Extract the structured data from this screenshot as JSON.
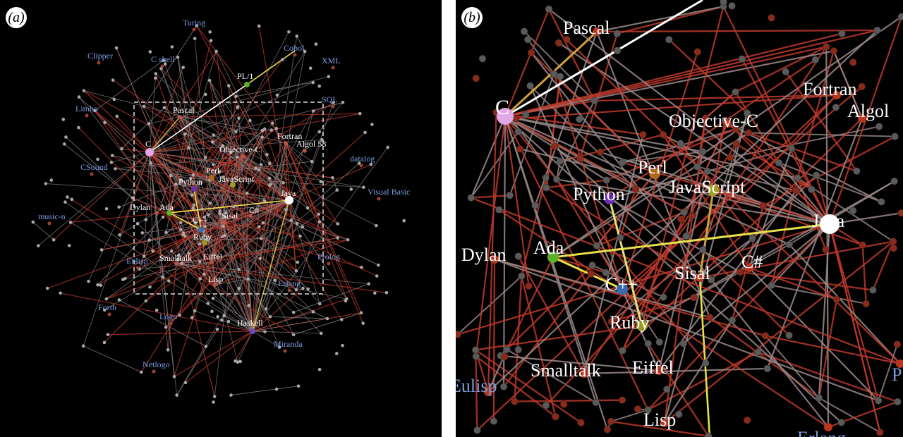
{
  "figure": {
    "panel_a": {
      "label": "(a)",
      "languages_white": [
        "C",
        "Pascal",
        "PL/1",
        "Objective-C",
        "Fortran",
        "Algol 58",
        "Perl",
        "Python",
        "JavaScript",
        "Java",
        "Dylan",
        "Ada",
        "C++",
        "Sisal",
        "C#",
        "Ruby",
        "Smalltalk",
        "Eiffel",
        "Lisp",
        "Haskell"
      ],
      "languages_blue": [
        "Turing",
        "Clipper",
        "C shell",
        "Cobol",
        "XML",
        "SQL",
        "Limbo",
        "CSound",
        "datalog",
        "Visual Basic",
        "music-n",
        "Eulisp",
        "Prolog",
        "Erlang",
        "Forth",
        "Logo",
        "Miranda",
        "Netlogo"
      ]
    },
    "panel_b": {
      "label": "(b)",
      "languages_white": [
        "Pascal",
        "C",
        "Fortran",
        "Algol",
        "Objective-C",
        "Perl",
        "Python",
        "JavaScript",
        "Java",
        "Dylan",
        "Ada",
        "C++",
        "Sisal",
        "C#",
        "Ruby",
        "Smalltalk",
        "Eiffel",
        "Lisp"
      ],
      "languages_blue": [
        "Eulisp",
        "Erlang",
        "P"
      ]
    },
    "colors": {
      "background": "#000000",
      "edge_grey": "#8a8080",
      "edge_red": "#c0392b",
      "edge_yellow": "#e8e04a",
      "label_white": "#ffffff",
      "label_blue": "#7e9de0",
      "node_C": "#e0a8e8",
      "node_Java": "#ffffff",
      "node_Python": "#6a2fb0",
      "node_Ada": "#5cb02a",
      "node_Cpp": "#3a6ab0",
      "node_Ruby": "#9a9a20",
      "node_Perl": "#b06a20",
      "node_JavaScript": "#a0a020",
      "node_Haskell": "#6a4ac0"
    }
  }
}
